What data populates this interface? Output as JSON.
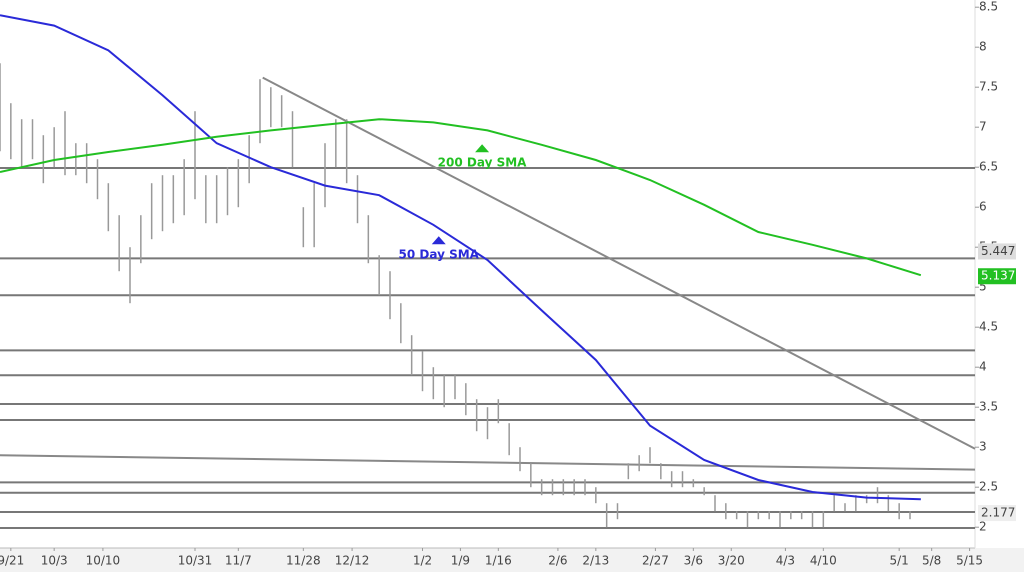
{
  "chart_data": {
    "type": "ohlc",
    "xlim": [
      0,
      180
    ],
    "ylim": [
      1.74,
      8.59
    ],
    "yticks": [
      2,
      2.5,
      3,
      3.5,
      4,
      4.5,
      5,
      5.5,
      6,
      6.5,
      7,
      7.5,
      8,
      8.5
    ],
    "xticks": [
      {
        "value": 2,
        "label": "9/21"
      },
      {
        "value": 10,
        "label": "10/3"
      },
      {
        "value": 19,
        "label": "10/10"
      },
      {
        "value": 36,
        "label": "10/31"
      },
      {
        "value": 44,
        "label": "11/7"
      },
      {
        "value": 56,
        "label": "11/28"
      },
      {
        "value": 65,
        "label": "12/12"
      },
      {
        "value": 78,
        "label": "1/2"
      },
      {
        "value": 85,
        "label": "1/9"
      },
      {
        "value": 92,
        "label": "1/16"
      },
      {
        "value": 103,
        "label": "2/6"
      },
      {
        "value": 110,
        "label": "2/13"
      },
      {
        "value": 121,
        "label": "2/27"
      },
      {
        "value": 128,
        "label": "3/6"
      },
      {
        "value": 135,
        "label": "3/20"
      },
      {
        "value": 145,
        "label": "4/3"
      },
      {
        "value": 152,
        "label": "4/10"
      },
      {
        "value": 166,
        "label": "5/1"
      },
      {
        "value": 172,
        "label": "5/8"
      },
      {
        "value": 179,
        "label": "5/15"
      }
    ],
    "bars": {
      "color": "#999999",
      "x": [
        0,
        2,
        4,
        6,
        8,
        10,
        12,
        14,
        16,
        18,
        20,
        22,
        24,
        26,
        28,
        30,
        32,
        34,
        36,
        38,
        40,
        42,
        44,
        46,
        48,
        50,
        52,
        54,
        56,
        58,
        60,
        62,
        64,
        66,
        68,
        70,
        72,
        74,
        76,
        78,
        80,
        82,
        84,
        86,
        88,
        90,
        92,
        94,
        96,
        98,
        100,
        102,
        104,
        106,
        108,
        110,
        112,
        114,
        116,
        118,
        120,
        122,
        124,
        126,
        128,
        130,
        132,
        134,
        136,
        138,
        140,
        142,
        144,
        146,
        148,
        150,
        152,
        154,
        156,
        158,
        160,
        162,
        164,
        166,
        168
      ],
      "low": [
        6.7,
        6.6,
        6.5,
        6.6,
        6.3,
        6.5,
        6.4,
        6.4,
        6.3,
        6.1,
        5.7,
        5.2,
        4.8,
        5.3,
        5.6,
        5.7,
        5.8,
        5.9,
        6.1,
        5.8,
        5.8,
        5.9,
        6.0,
        6.3,
        6.8,
        7.0,
        7.0,
        6.5,
        5.5,
        5.5,
        6.0,
        6.5,
        6.3,
        5.8,
        5.3,
        4.9,
        4.6,
        4.3,
        3.9,
        3.7,
        3.6,
        3.5,
        3.6,
        3.4,
        3.2,
        3.1,
        3.3,
        2.9,
        2.7,
        2.5,
        2.4,
        2.4,
        2.4,
        2.4,
        2.4,
        2.3,
        2.0,
        2.1,
        2.6,
        2.7,
        2.8,
        2.6,
        2.5,
        2.5,
        2.5,
        2.4,
        2.2,
        2.1,
        2.1,
        2.0,
        2.1,
        2.1,
        2.0,
        2.1,
        2.1,
        2.0,
        2.0,
        2.2,
        2.2,
        2.2,
        2.3,
        2.3,
        2.2,
        2.1,
        2.1
      ],
      "high": [
        7.8,
        7.3,
        7.1,
        7.1,
        6.9,
        7.0,
        7.2,
        6.8,
        6.8,
        6.6,
        6.3,
        5.9,
        5.5,
        5.9,
        6.3,
        6.4,
        6.4,
        6.6,
        7.2,
        6.4,
        6.4,
        6.5,
        6.6,
        6.9,
        7.6,
        7.5,
        7.4,
        7.2,
        6.0,
        6.3,
        6.8,
        7.1,
        7.1,
        6.4,
        5.9,
        5.4,
        5.2,
        4.8,
        4.4,
        4.2,
        4.0,
        3.9,
        3.9,
        3.8,
        3.6,
        3.5,
        3.6,
        3.3,
        3.0,
        2.8,
        2.6,
        2.6,
        2.6,
        2.6,
        2.6,
        2.5,
        2.3,
        2.3,
        2.8,
        2.9,
        3.0,
        2.8,
        2.7,
        2.7,
        2.6,
        2.5,
        2.4,
        2.3,
        2.2,
        2.2,
        2.2,
        2.2,
        2.2,
        2.2,
        2.2,
        2.2,
        2.2,
        2.4,
        2.3,
        2.4,
        2.4,
        2.5,
        2.4,
        2.3,
        2.2
      ]
    },
    "series": [
      {
        "name": "50 Day SMA",
        "color": "#2a2ad8",
        "x": [
          0,
          10,
          20,
          30,
          40,
          50,
          60,
          70,
          80,
          90,
          100,
          110,
          120,
          130,
          140,
          150,
          160,
          170
        ],
        "values": [
          8.4,
          8.27,
          7.96,
          7.4,
          6.8,
          6.5,
          6.27,
          6.15,
          5.78,
          5.34,
          4.71,
          4.09,
          3.27,
          2.84,
          2.59,
          2.44,
          2.37,
          2.35
        ],
        "label_x": 81,
        "label_y": 5.45
      },
      {
        "name": "200 Day SMA",
        "color": "#22c022",
        "x": [
          0,
          10,
          20,
          30,
          40,
          50,
          60,
          70,
          80,
          90,
          100,
          110,
          120,
          130,
          140,
          150,
          160,
          170
        ],
        "values": [
          6.44,
          6.59,
          6.69,
          6.78,
          6.88,
          6.96,
          7.03,
          7.1,
          7.06,
          6.96,
          6.78,
          6.59,
          6.34,
          6.03,
          5.69,
          5.53,
          5.36,
          5.15
        ],
        "label_x": 89,
        "label_y": 6.6
      }
    ],
    "levels": [
      6.49,
      5.36,
      4.9,
      4.21,
      3.9,
      3.54,
      3.34,
      2.56,
      2.43,
      2.19,
      1.99
    ],
    "trendlines": [
      {
        "x": [
          48.5,
          180
        ],
        "y": [
          7.62,
          2.98
        ]
      },
      {
        "x": [
          0,
          180
        ],
        "y": [
          2.9,
          2.72
        ]
      }
    ],
    "price_labels": [
      {
        "value": 5.447,
        "label": "5.447",
        "color": "#dddddd"
      },
      {
        "value": 5.137,
        "label": "5.137",
        "color": "#22c022"
      },
      {
        "value": 2.177,
        "label": "2.177",
        "color": "#eeeeee"
      }
    ]
  }
}
